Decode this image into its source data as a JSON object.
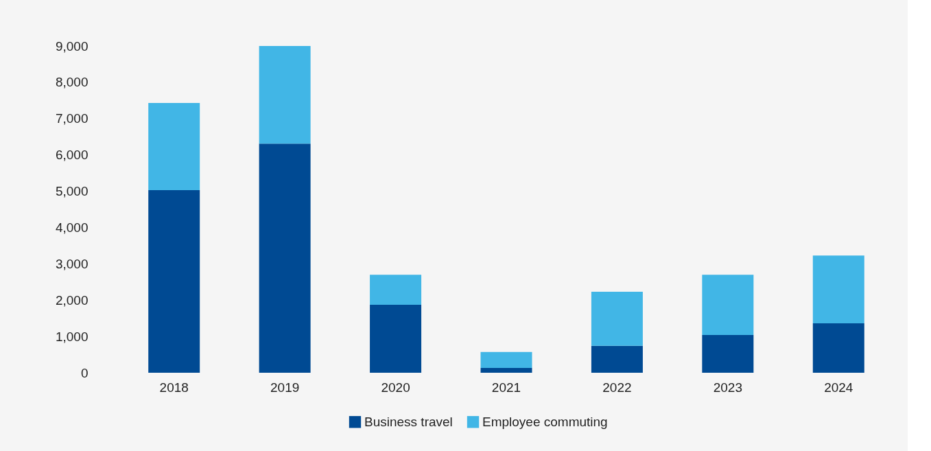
{
  "chart_data": {
    "type": "bar",
    "stacked": true,
    "categories": [
      "2018",
      "2019",
      "2020",
      "2021",
      "2022",
      "2023",
      "2024"
    ],
    "series": [
      {
        "name": "Business travel",
        "color": "#004a93",
        "values": [
          5030,
          6310,
          1870,
          130,
          740,
          1040,
          1360
        ]
      },
      {
        "name": "Employee commuting",
        "color": "#41b6e6",
        "values": [
          2400,
          2690,
          830,
          440,
          1490,
          1660,
          1870
        ]
      }
    ],
    "ylim": [
      0,
      9000
    ],
    "yticks": [
      0,
      {
        "value": 1000,
        "label": "1,000"
      },
      {
        "value": 2000,
        "label": "2,000"
      },
      {
        "value": 3000,
        "label": "3,000"
      },
      {
        "value": 4000,
        "label": "4,000"
      },
      {
        "value": 5000,
        "label": "5,000"
      },
      {
        "value": 6000,
        "label": "6,000"
      },
      {
        "value": 7000,
        "label": "7,000"
      },
      {
        "value": 8000,
        "label": "8,000"
      },
      {
        "value": 9000,
        "label": "9,000"
      }
    ],
    "grid": false,
    "legend": "bottom"
  }
}
